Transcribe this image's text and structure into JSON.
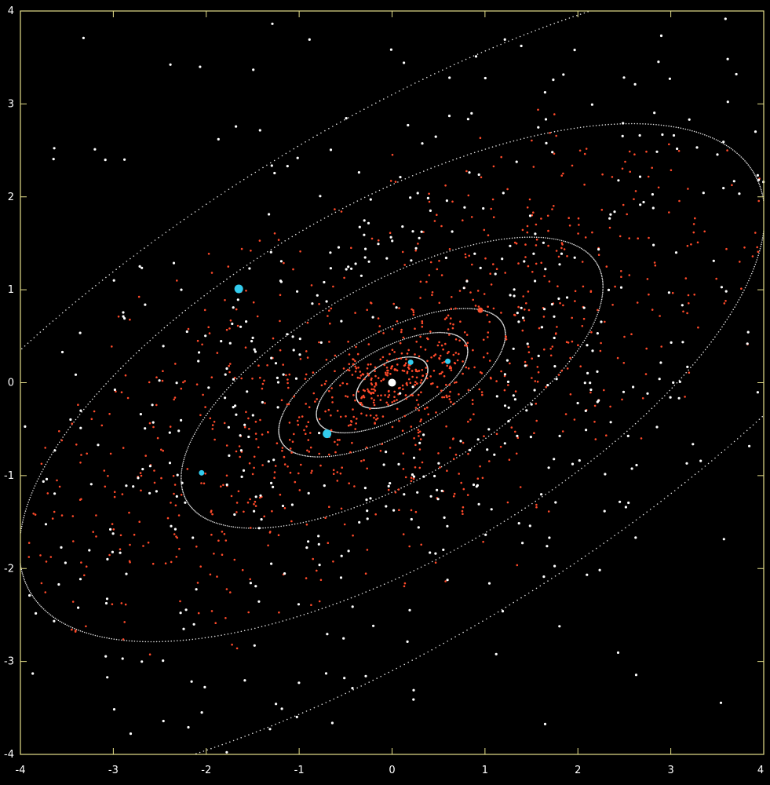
{
  "chart_data": {
    "type": "scatter",
    "title": "",
    "xlabel": "",
    "ylabel": "",
    "xlim": [
      -4,
      4
    ],
    "ylim": [
      -4,
      4
    ],
    "grid": false,
    "legend": "none",
    "x_ticks": [
      "-4",
      "-3",
      "-2",
      "-1",
      "0",
      "1",
      "2",
      "3",
      "4"
    ],
    "y_ticks": [
      "-4",
      "-3",
      "-2",
      "-1",
      "0",
      "1",
      "2",
      "3",
      "4"
    ],
    "colors": {
      "background": "#000000",
      "frame": "#e6e08a",
      "inner_asteroid": "#ff4a2a",
      "outer_asteroid": "#ffffff",
      "planet": "#33ccee",
      "sun": "#ffffff",
      "orbit": "#dddddd"
    },
    "sun": {
      "x": 0.0,
      "y": 0.0
    },
    "planets": [
      {
        "x": 0.2,
        "y": 0.22
      },
      {
        "x": 0.6,
        "y": 0.23
      },
      {
        "x": -0.7,
        "y": -0.55
      },
      {
        "x": 0.95,
        "y": 0.78,
        "color": "#ff5533"
      },
      {
        "x": -2.05,
        "y": -0.97
      },
      {
        "x": -1.65,
        "y": 1.01
      }
    ],
    "orbits": [
      {
        "a": 0.42,
        "b": 0.22,
        "angle_deg": 28
      },
      {
        "a": 0.9,
        "b": 0.38,
        "angle_deg": 28
      },
      {
        "a": 1.35,
        "b": 0.55,
        "angle_deg": 28
      },
      {
        "a": 2.55,
        "b": 1.05,
        "angle_deg": 30
      },
      {
        "a": 4.5,
        "b": 1.9,
        "angle_deg": 30
      },
      {
        "a": 7.2,
        "b": 2.7,
        "angle_deg": 32
      }
    ],
    "series": [
      {
        "type": "inner_asteroids",
        "count": 1100,
        "a_min": 0.2,
        "a_max": 4.6,
        "b_ratio": 0.42,
        "angle_deg": 28,
        "seed": 7
      },
      {
        "type": "outer_asteroids",
        "count": 480,
        "a_min": 1.5,
        "a_max": 6.0,
        "b_ratio": 0.5,
        "angle_deg": 30,
        "seed": 19
      },
      {
        "type": "outer_stray",
        "count": 60,
        "seed": 31
      }
    ]
  }
}
